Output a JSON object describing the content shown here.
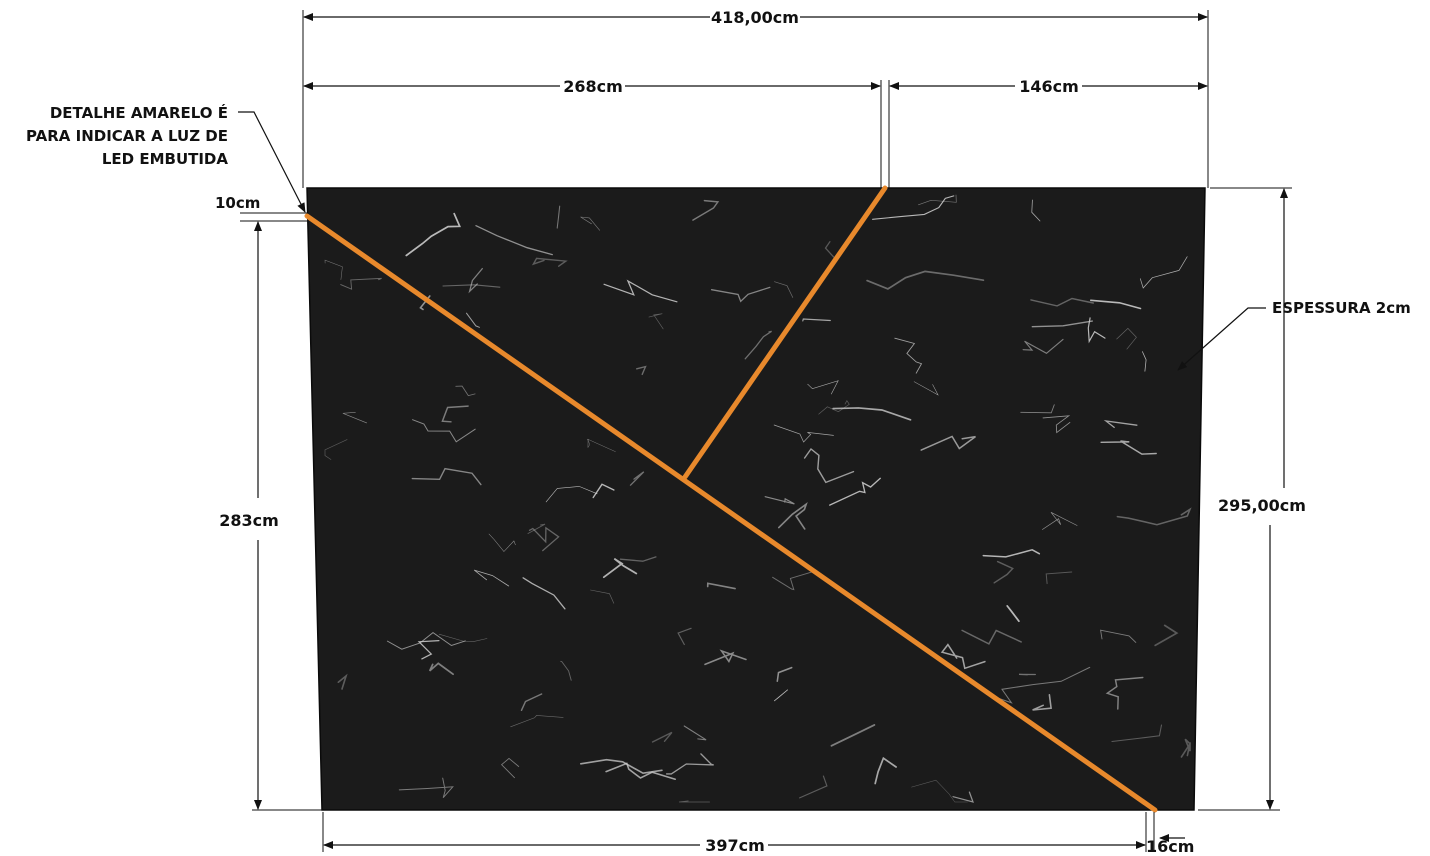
{
  "notes": {
    "led_line_1": "DETALHE AMARELO É",
    "led_line_2": "PARA INDICAR A LUZ DE",
    "led_line_3": "LED EMBUTIDA",
    "thickness": "ESPESSURA 2cm"
  },
  "dimensions": {
    "total_width_top": "418,00cm",
    "left_segment_top": "268cm",
    "right_segment_top": "146cm",
    "top_offset_left": "10cm",
    "left_height": "283cm",
    "total_height_right": "295,00cm",
    "bottom_width": "397cm",
    "bottom_offset_right": "16cm"
  },
  "colors": {
    "panel": "#1b1b1b",
    "led": "#e8892c",
    "vein": "#d9d9d9",
    "annotation": "#111111"
  }
}
